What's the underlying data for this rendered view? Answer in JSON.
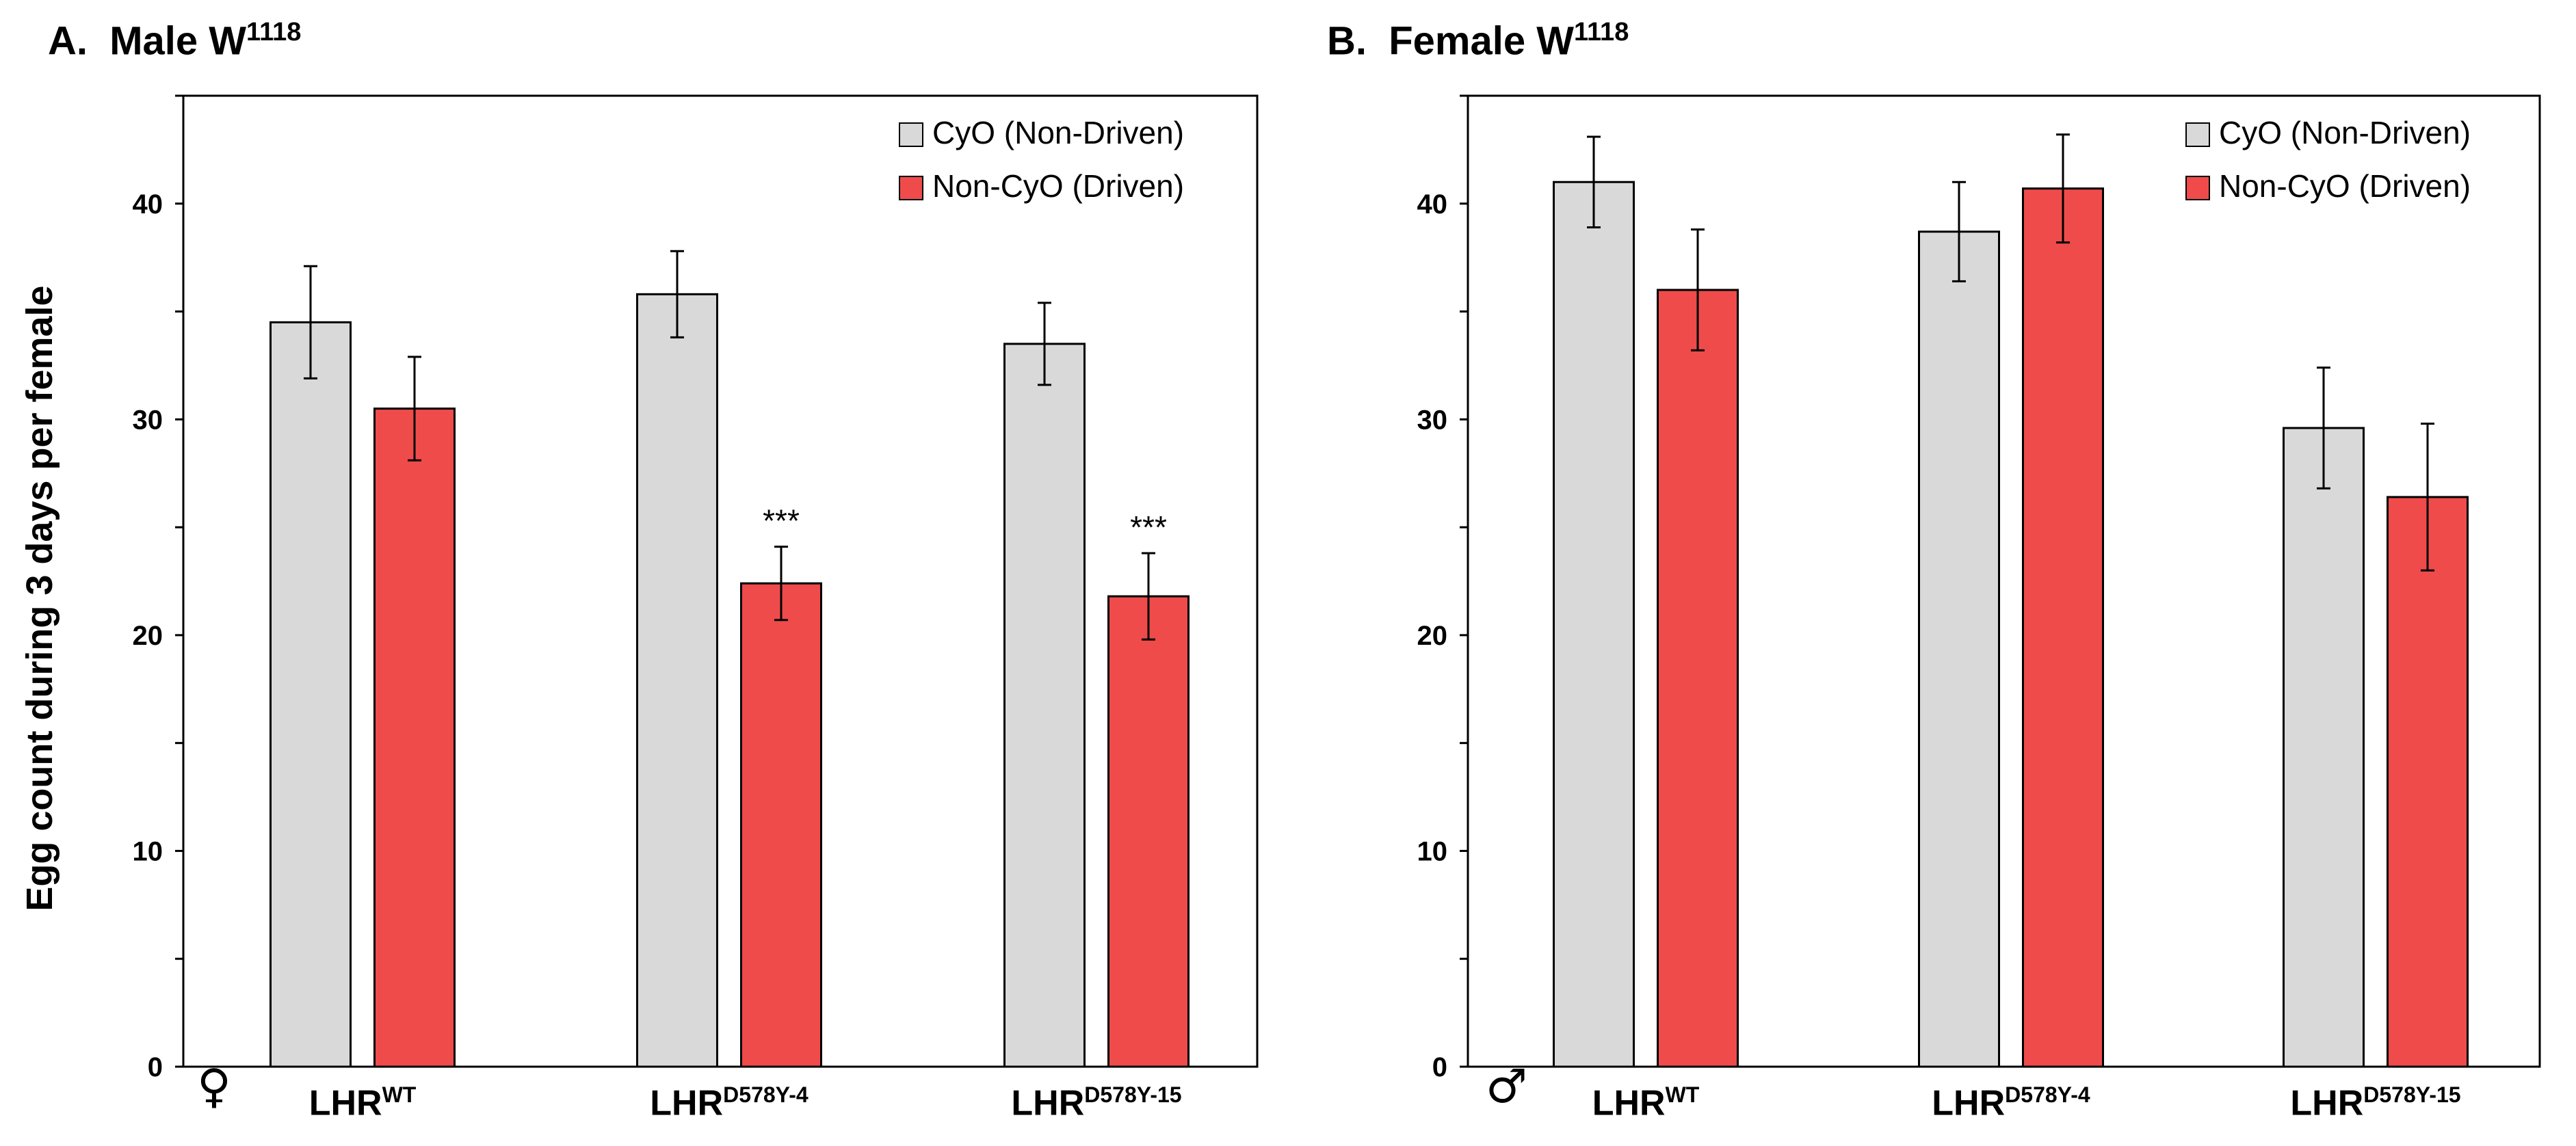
{
  "colors": {
    "cyo": "#d9d9d9",
    "noncyo": "#ef4b4b",
    "axis": "#000000"
  },
  "chart_data": [
    {
      "id": "A",
      "type": "bar",
      "panel_letter": "A.",
      "title_main": "Male W",
      "title_sup": "1118",
      "ylabel": "Egg count during 3 days per female",
      "sex_symbol": "♀",
      "ylim": [
        0,
        45
      ],
      "yticks": [
        "0",
        "10",
        "20",
        "30",
        "40"
      ],
      "categories": [
        {
          "base": "LHR",
          "sup": "WT"
        },
        {
          "base": "LHR",
          "sup": "D578Y-4"
        },
        {
          "base": "LHR",
          "sup": "D578Y-15"
        }
      ],
      "series": [
        {
          "name": "CyO (Non-Driven)",
          "values": [
            34.5,
            35.8,
            33.5
          ],
          "errors": [
            2.6,
            2.0,
            1.9
          ]
        },
        {
          "name": "Non-CyO (Driven)",
          "values": [
            30.5,
            22.4,
            21.8
          ],
          "errors": [
            2.4,
            1.7,
            2.0
          ]
        }
      ],
      "annotations": [
        "",
        "***",
        "***"
      ],
      "legend_position": "top-right"
    },
    {
      "id": "B",
      "type": "bar",
      "panel_letter": "B.",
      "title_main": "Female W",
      "title_sup": "1118",
      "ylabel": "",
      "sex_symbol": "♂",
      "ylim": [
        0,
        45
      ],
      "yticks": [
        "0",
        "10",
        "20",
        "30",
        "40"
      ],
      "categories": [
        {
          "base": "LHR",
          "sup": "WT"
        },
        {
          "base": "LHR",
          "sup": "D578Y-4"
        },
        {
          "base": "LHR",
          "sup": "D578Y-15"
        }
      ],
      "series": [
        {
          "name": "CyO (Non-Driven)",
          "values": [
            41.0,
            38.7,
            29.6
          ],
          "errors": [
            2.1,
            2.3,
            2.8
          ]
        },
        {
          "name": "Non-CyO (Driven)",
          "values": [
            36.0,
            40.7,
            26.4
          ],
          "errors": [
            2.8,
            2.5,
            3.4
          ]
        }
      ],
      "annotations": [
        "",
        "",
        ""
      ],
      "legend_position": "top-right"
    }
  ]
}
